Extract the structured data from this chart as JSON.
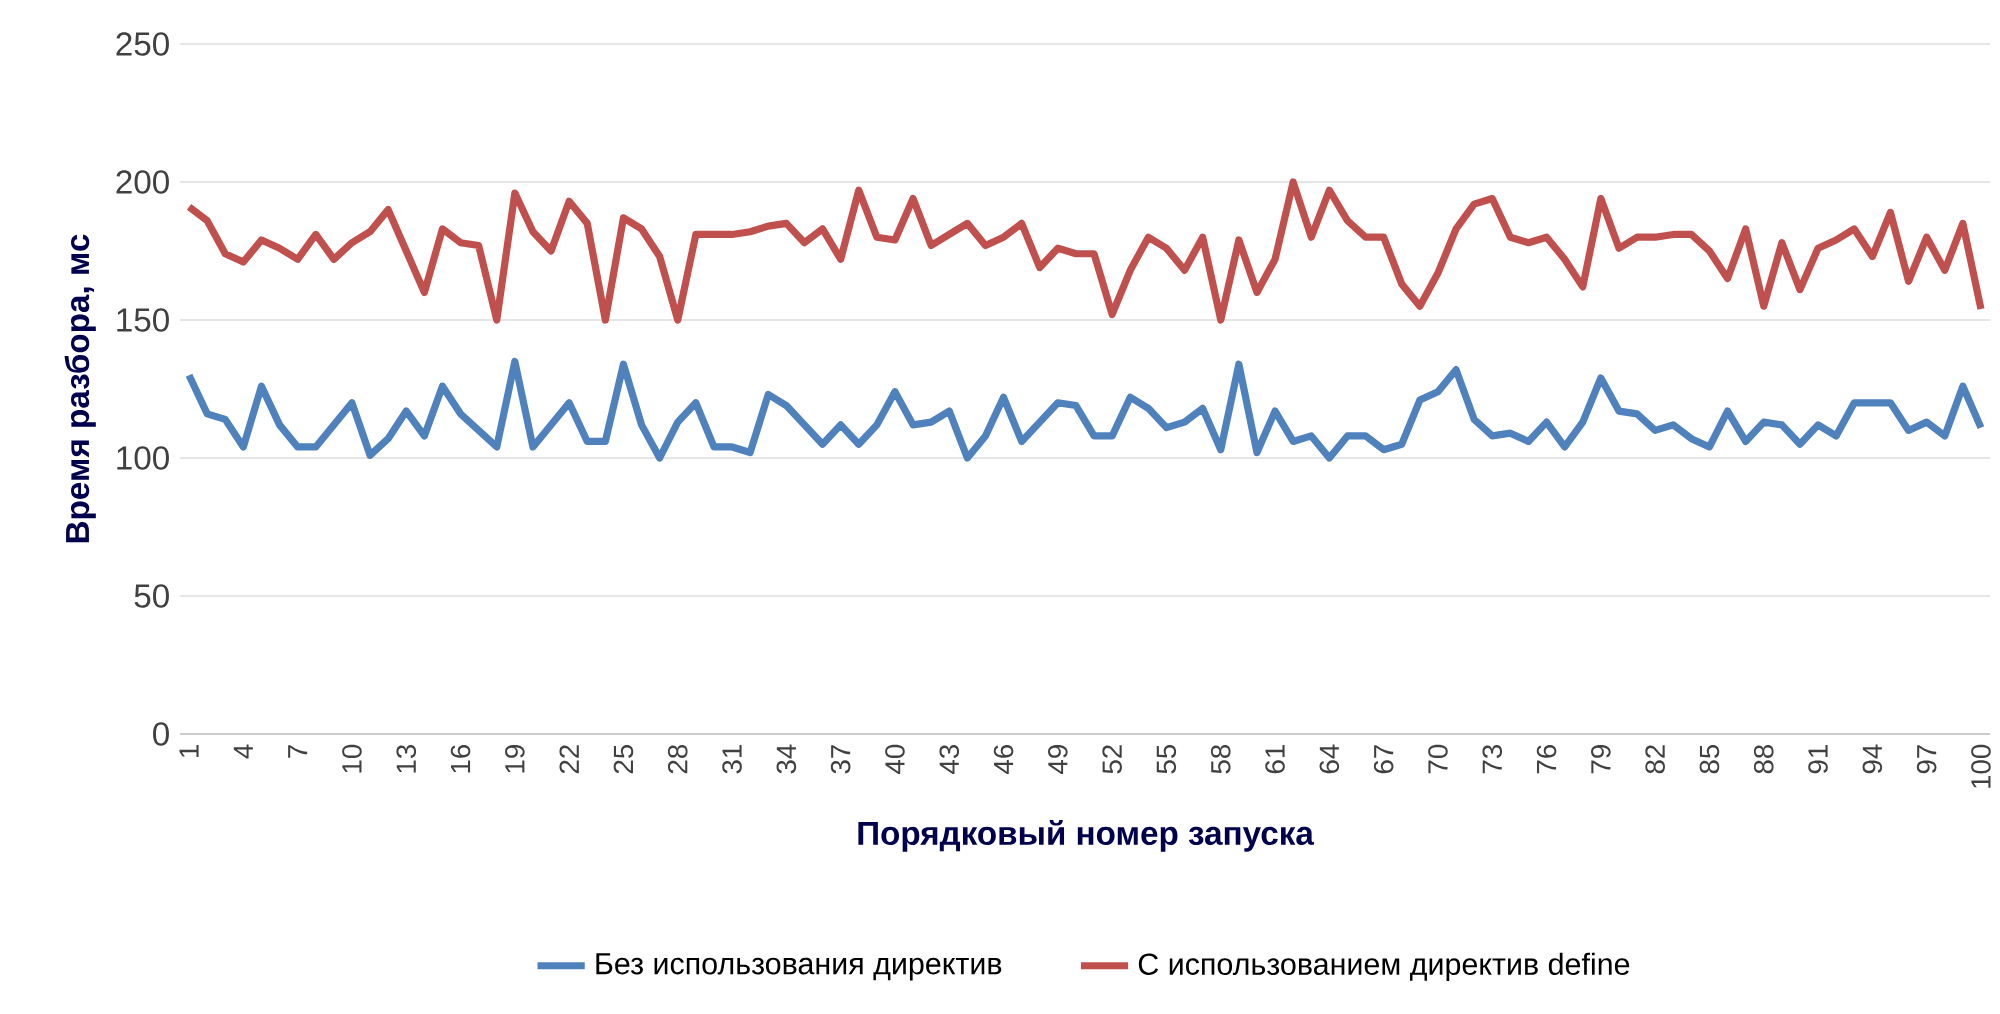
{
  "chart_data": {
    "type": "line",
    "xlabel": "Порядковый номер запуска",
    "ylabel": "Время разбора, мс",
    "categories": [
      "1",
      null,
      null,
      "4",
      null,
      null,
      "7",
      null,
      null,
      "10",
      null,
      null,
      "13",
      null,
      null,
      "16",
      null,
      null,
      "19",
      null,
      null,
      "22",
      null,
      null,
      "25",
      null,
      null,
      "28",
      null,
      null,
      "31",
      null,
      null,
      "34",
      null,
      null,
      "37",
      null,
      null,
      "40",
      null,
      null,
      "43",
      null,
      null,
      "46",
      null,
      null,
      "49",
      null,
      null,
      "52",
      null,
      null,
      "55",
      null,
      null,
      "58",
      null,
      null,
      "61",
      null,
      null,
      "64",
      null,
      null,
      "67",
      null,
      null,
      "70",
      null,
      null,
      "73",
      null,
      null,
      "76",
      null,
      null,
      "79",
      null,
      null,
      "82",
      null,
      null,
      "85",
      null,
      null,
      "88",
      null,
      null,
      "91",
      null,
      null,
      "94",
      null,
      null,
      "97",
      null,
      null,
      "100"
    ],
    "series": [
      {
        "name": "Без использования директив",
        "color": "#4f81bd",
        "values": [
          130,
          116,
          114,
          104,
          126,
          112,
          104,
          104,
          112,
          120,
          101,
          107,
          117,
          108,
          126,
          116,
          110,
          104,
          135,
          104,
          112,
          120,
          106,
          106,
          134,
          112,
          100,
          113,
          120,
          104,
          104,
          102,
          123,
          119,
          112,
          105,
          112,
          105,
          112,
          124,
          112,
          113,
          117,
          100,
          108,
          122,
          106,
          113,
          120,
          119,
          108,
          108,
          122,
          118,
          111,
          113,
          118,
          103,
          134,
          102,
          117,
          106,
          108,
          100,
          108,
          108,
          103,
          105,
          121,
          124,
          132,
          114,
          108,
          109,
          106,
          113,
          104,
          113,
          129,
          117,
          116,
          110,
          112,
          107,
          104,
          117,
          106,
          113,
          112,
          105,
          112,
          108,
          120,
          120,
          120,
          110,
          113,
          108,
          126,
          111
        ]
      },
      {
        "name": "С использованием директив define",
        "color": "#c0504d",
        "values": [
          191,
          186,
          174,
          171,
          179,
          176,
          172,
          181,
          172,
          178,
          182,
          190,
          175,
          160,
          183,
          178,
          177,
          150,
          196,
          182,
          175,
          193,
          185,
          150,
          187,
          183,
          173,
          150,
          181,
          181,
          181,
          182,
          184,
          185,
          178,
          183,
          172,
          197,
          180,
          179,
          194,
          177,
          181,
          185,
          177,
          180,
          185,
          169,
          176,
          174,
          174,
          152,
          168,
          180,
          176,
          168,
          180,
          150,
          179,
          160,
          172,
          200,
          180,
          197,
          186,
          180,
          180,
          163,
          155,
          167,
          183,
          192,
          194,
          180,
          178,
          180,
          172,
          162,
          194,
          176,
          180,
          180,
          181,
          181,
          175,
          165,
          183,
          155,
          178,
          161,
          176,
          179,
          183,
          173,
          189,
          164,
          180,
          168,
          185,
          154
        ]
      }
    ],
    "ylim": [
      0,
      250
    ],
    "yticks": [
      0,
      50,
      100,
      150,
      200,
      250
    ],
    "grid": "y",
    "legend": "bottom",
    "marker": "none",
    "line_style": "solid"
  }
}
